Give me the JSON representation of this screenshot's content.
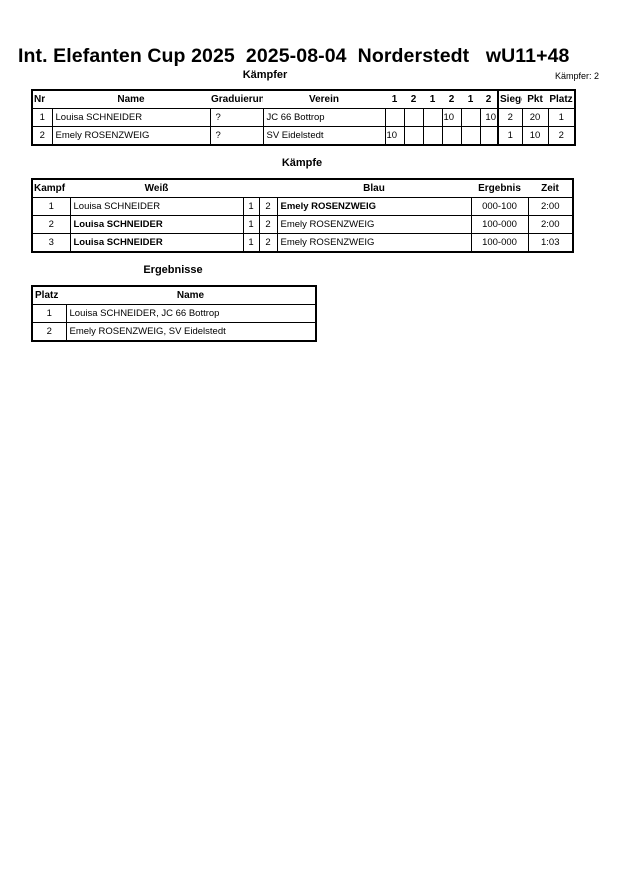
{
  "title": "Int. Elefanten Cup 2025  2025-08-04  Norderstedt   wU11+48",
  "fighters_section": {
    "heading": "Kämpfer",
    "count": "Kämpfer: 2",
    "headers": [
      "Nr",
      "Name",
      "Graduierung",
      "Verein",
      "1",
      "2",
      "1",
      "2",
      "1",
      "2",
      "Siege",
      "Pkt",
      "Platz"
    ],
    "rows": [
      [
        "1",
        "Louisa SCHNEIDER",
        "?",
        "JC 66 Bottrop",
        "",
        "",
        "",
        "10",
        "",
        "10",
        "2",
        "20",
        "1"
      ],
      [
        "2",
        "Emely ROSENZWEIG",
        "?",
        "SV Eidelstedt",
        "10",
        "",
        "",
        "",
        "",
        "",
        "1",
        "10",
        "2"
      ]
    ]
  },
  "fights_section": {
    "heading": "Kämpfe",
    "headers": [
      "Kampf",
      "Weiß",
      "",
      "",
      "Blau",
      "Ergebnis",
      "Zeit"
    ],
    "rows": [
      {
        "nr": "1",
        "white": "Louisa SCHNEIDER",
        "w": "1",
        "b": "2",
        "blue": "Emely ROSENZWEIG",
        "result": "000-100",
        "time": "2:00",
        "winner": "blue"
      },
      {
        "nr": "2",
        "white": "Louisa SCHNEIDER",
        "w": "1",
        "b": "2",
        "blue": "Emely ROSENZWEIG",
        "result": "100-000",
        "time": "2:00",
        "winner": "white"
      },
      {
        "nr": "3",
        "white": "Louisa SCHNEIDER",
        "w": "1",
        "b": "2",
        "blue": "Emely ROSENZWEIG",
        "result": "100-000",
        "time": "1:03",
        "winner": "white"
      }
    ]
  },
  "results_section": {
    "heading": "Ergebnisse",
    "headers": [
      "Platz",
      "Name"
    ],
    "rows": [
      [
        "1",
        "Louisa SCHNEIDER, JC 66 Bottrop"
      ],
      [
        "2",
        "Emely ROSENZWEIG, SV Eidelstedt"
      ]
    ]
  }
}
